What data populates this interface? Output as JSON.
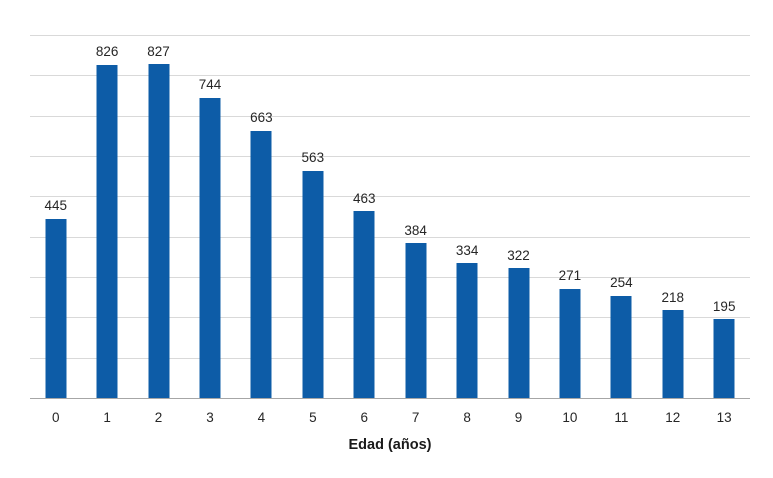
{
  "chart_data": {
    "type": "bar",
    "categories": [
      "0",
      "1",
      "2",
      "3",
      "4",
      "5",
      "6",
      "7",
      "8",
      "9",
      "10",
      "11",
      "12",
      "13"
    ],
    "values": [
      445,
      826,
      827,
      744,
      663,
      563,
      463,
      384,
      334,
      322,
      271,
      254,
      218,
      195
    ],
    "title": "",
    "xlabel": "Edad (años)",
    "ylabel": "",
    "ylim": [
      0,
      900
    ],
    "gridline_step": 100,
    "grid": true,
    "legend": "none",
    "data_labels": true,
    "colors": {
      "bar": "#0D5CA7",
      "gridline": "#D9D9D9",
      "axis_line": "#A6A6A6",
      "label_text": "#262626",
      "background": "#FFFFFF"
    }
  }
}
